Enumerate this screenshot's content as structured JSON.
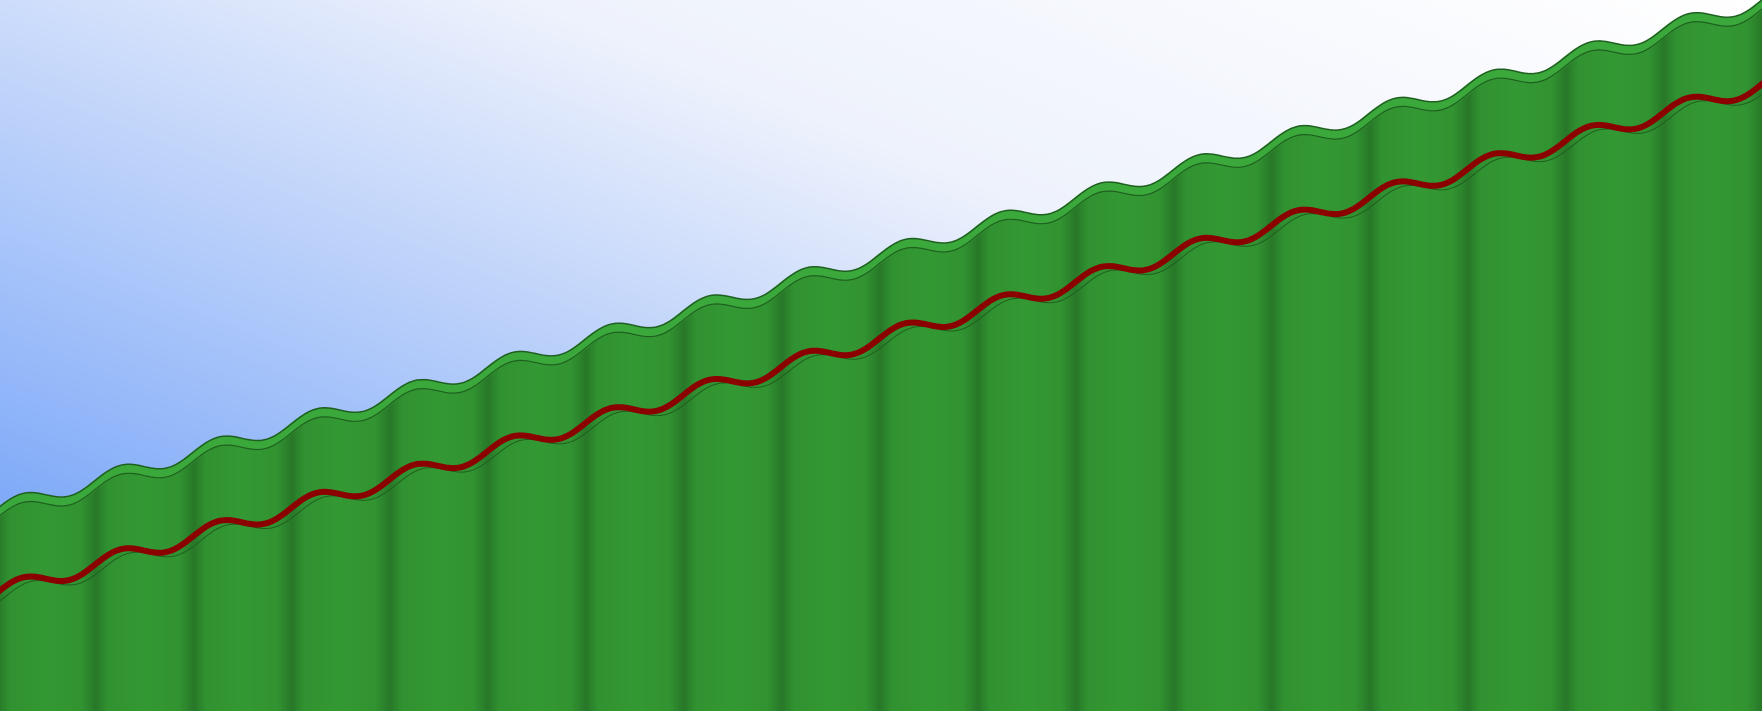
{
  "scene": {
    "type": "side-scrolling terrain",
    "colors": {
      "sky_top": "#ffffff",
      "sky_bottom": "#6d9ef8",
      "ground": "#339933",
      "ground_dark_stripe": "#2a7a2a",
      "grass_edge": "#3aa83a",
      "outline": "#1f5f1f",
      "red_path": "#8b0000"
    },
    "features": [
      "wavy-sloped-hill",
      "grass-top-edge",
      "red-wavy-line",
      "vertical-shading-stripes"
    ]
  }
}
